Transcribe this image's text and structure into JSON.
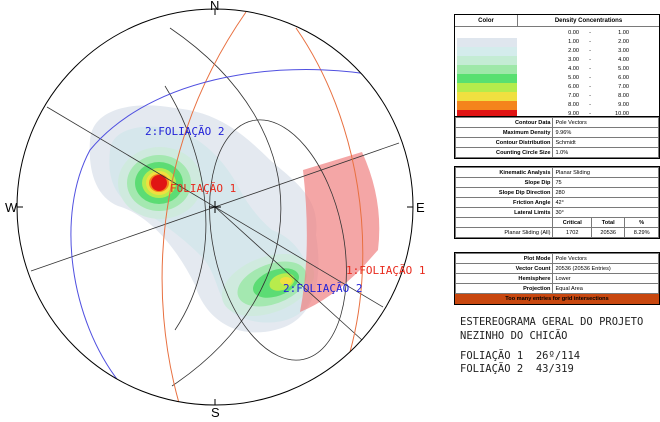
{
  "compass": {
    "n": "N",
    "s": "S",
    "e": "E",
    "w": "W"
  },
  "sets": [
    {
      "label": "FOLIAÇÃO 1",
      "label_full": "1:FOLIAÇÃO 1",
      "color": "#e8291c"
    },
    {
      "label": "2:FOLIAÇÃO 2",
      "label_full": "2:FOLIAÇÃO 2",
      "color": "#2222d8"
    }
  ],
  "legend": {
    "header_color": "Color",
    "header_density": "Density Concentrations",
    "rows": [
      {
        "from": "0.00",
        "to": "1.00",
        "color": "#ffffff"
      },
      {
        "from": "1.00",
        "to": "2.00",
        "color": "#dfe6ee"
      },
      {
        "from": "2.00",
        "to": "3.00",
        "color": "#d4ecec"
      },
      {
        "from": "3.00",
        "to": "4.00",
        "color": "#c4ecd4"
      },
      {
        "from": "4.00",
        "to": "5.00",
        "color": "#9ee8a8"
      },
      {
        "from": "5.00",
        "to": "6.00",
        "color": "#58e070"
      },
      {
        "from": "6.00",
        "to": "7.00",
        "color": "#b4ec4c"
      },
      {
        "from": "7.00",
        "to": "8.00",
        "color": "#f0e040"
      },
      {
        "from": "8.00",
        "to": "9.00",
        "color": "#f4841c"
      },
      {
        "from": "9.00",
        "to": "10.00",
        "color": "#e01414"
      }
    ]
  },
  "contour_table": [
    {
      "k": "Contour Data",
      "v": "Pole Vectors"
    },
    {
      "k": "Maximum Density",
      "v": "9.96%"
    },
    {
      "k": "Contour Distribution",
      "v": "Schmidt"
    },
    {
      "k": "Counting Circle Size",
      "v": "1.0%"
    }
  ],
  "kinematic_table": [
    {
      "k": "Kinematic Analysis",
      "v": "Planar Sliding"
    },
    {
      "k": "Slope Dip",
      "v": "75"
    },
    {
      "k": "Slope Dip Direction",
      "v": "280"
    },
    {
      "k": "Friction Angle",
      "v": "42°"
    },
    {
      "k": "Lateral Limits",
      "v": "30°"
    }
  ],
  "result_table": {
    "headers": [
      "",
      "Critical",
      "Total",
      "%"
    ],
    "row": [
      "Planar Sliding (All)",
      "1702",
      "20536",
      "8.29%"
    ]
  },
  "plot_table": [
    {
      "k": "Plot Mode",
      "v": "Pole Vectors"
    },
    {
      "k": "Vector Count",
      "v": "20536 (20536 Entries)"
    },
    {
      "k": "Hemisphere",
      "v": "Lower"
    },
    {
      "k": "Projection",
      "v": "Equal Area"
    }
  ],
  "warning": "Too many entries for grid intersections",
  "caption": {
    "line1": "ESTEREOGRAMA GERAL DO PROJETO",
    "line2": "NEZINHO DO CHICÃO",
    "line3": "FOLIAÇÃO 1  26º/114",
    "line4": "FOLIAÇÃO 2  43/319"
  }
}
